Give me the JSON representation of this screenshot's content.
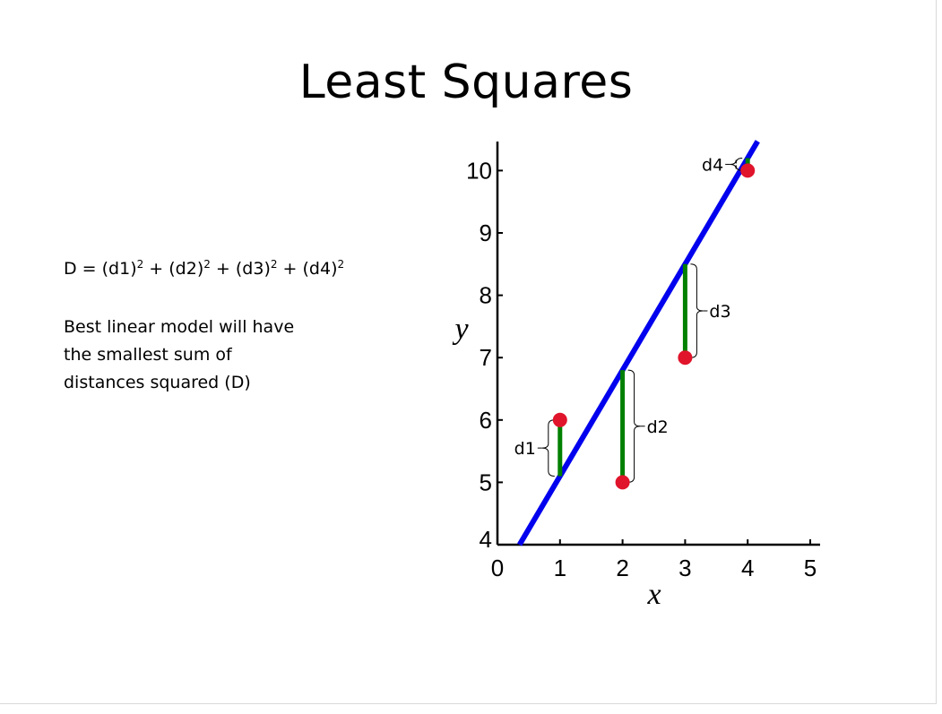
{
  "slide": {
    "title": "Least Squares",
    "formula": {
      "terms": [
        "(d1)",
        "(d2)",
        "(d3)",
        "(d4)"
      ],
      "exponent": "2",
      "prefix": "D = ",
      "joiner": " + "
    },
    "description_lines": [
      "Best linear model will have",
      "the smallest sum of",
      "distances squared (D)"
    ]
  },
  "chart_data": {
    "type": "scatter",
    "xlabel": "x",
    "ylabel": "y",
    "xlim": [
      0,
      5
    ],
    "ylim": [
      4,
      10.5
    ],
    "x_ticks": [
      "0",
      "1",
      "2",
      "3",
      "4",
      "5"
    ],
    "y_ticks": [
      "4",
      "5",
      "6",
      "7",
      "8",
      "9",
      "10"
    ],
    "points": [
      {
        "x": 1,
        "y": 6
      },
      {
        "x": 2,
        "y": 5
      },
      {
        "x": 3,
        "y": 7
      },
      {
        "x": 4,
        "y": 10
      }
    ],
    "fit_line": {
      "slope": 1.7,
      "intercept": 3.4
    },
    "residual_labels": [
      "d1",
      "d2",
      "d3",
      "d4"
    ],
    "colors": {
      "points": "#e0142b",
      "fit_line": "#0000ee",
      "residuals": "#008000",
      "axes": "#000000"
    }
  }
}
